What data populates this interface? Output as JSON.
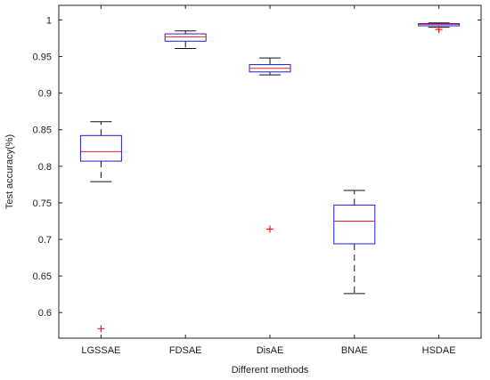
{
  "chart_data": {
    "type": "box",
    "title": "",
    "xlabel": "Different methods",
    "ylabel": "Test accuracy(%)",
    "ylim": [
      0.565,
      1.02
    ],
    "yticks": [
      0.6,
      0.65,
      0.7,
      0.75,
      0.8,
      0.85,
      0.9,
      0.95,
      1
    ],
    "ytick_labels": [
      "0.6",
      "0.65",
      "0.7",
      "0.75",
      "0.8",
      "0.85",
      "0.9",
      "0.95",
      "1"
    ],
    "categories": [
      "LGSSAE",
      "FDSAE",
      "DisAE",
      "BNAE",
      "HSDAE"
    ],
    "boxes": [
      {
        "whisker_low": 0.779,
        "q1": 0.807,
        "median": 0.82,
        "q3": 0.842,
        "whisker_high": 0.861,
        "outliers": [
          0.578
        ]
      },
      {
        "whisker_low": 0.961,
        "q1": 0.971,
        "median": 0.977,
        "q3": 0.981,
        "whisker_high": 0.985,
        "outliers": []
      },
      {
        "whisker_low": 0.925,
        "q1": 0.929,
        "median": 0.934,
        "q3": 0.939,
        "whisker_high": 0.948,
        "outliers": [
          0.714
        ]
      },
      {
        "whisker_low": 0.626,
        "q1": 0.694,
        "median": 0.725,
        "q3": 0.747,
        "whisker_high": 0.767,
        "outliers": []
      },
      {
        "whisker_low": 0.99,
        "q1": 0.992,
        "median": 0.994,
        "q3": 0.995,
        "whisker_high": 0.996,
        "outliers": [
          0.987
        ]
      }
    ],
    "grid": false,
    "colors": {
      "box": "#1f1fd4",
      "median": "#e8202a",
      "outlier": "#ff1a1a",
      "whisker": "#111111",
      "axis": "#222222"
    }
  }
}
